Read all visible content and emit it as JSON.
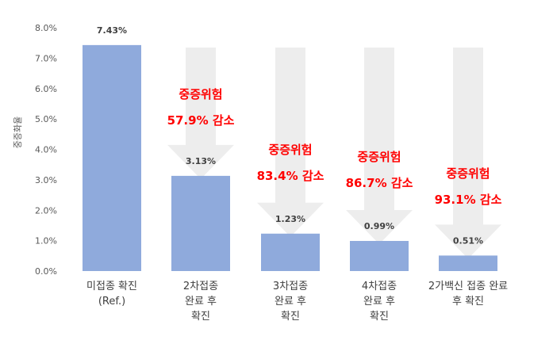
{
  "chart_data": {
    "type": "bar",
    "ylabel": "중증화율",
    "ylim": [
      0,
      8
    ],
    "yticks": [
      "0.0%",
      "1.0%",
      "2.0%",
      "3.0%",
      "4.0%",
      "5.0%",
      "6.0%",
      "7.0%",
      "8.0%"
    ],
    "grid": false,
    "bar_color": "#8faadc",
    "arrow_color": "#ededed",
    "annotation_color": "#ff0000",
    "categories": [
      [
        "미접종 확진",
        "(Ref.)"
      ],
      [
        "2차접종",
        "완료 후",
        "확진"
      ],
      [
        "3차접종",
        "완료 후",
        "확진"
      ],
      [
        "4차접종",
        "완료 후",
        "확진"
      ],
      [
        "2가백신 접종 완료",
        "후 확진"
      ]
    ],
    "values": [
      7.43,
      3.13,
      1.23,
      0.99,
      0.51
    ],
    "value_labels": [
      "7.43%",
      "3.13%",
      "1.23%",
      "0.99%",
      "0.51%"
    ],
    "annotations": [
      null,
      {
        "line1": "중증위험",
        "line2": "57.9% 감소"
      },
      {
        "line1": "중증위험",
        "line2": "83.4% 감소"
      },
      {
        "line1": "중증위험",
        "line2": "86.7% 감소"
      },
      {
        "line1": "중증위험",
        "line2": "93.1% 감소"
      }
    ]
  }
}
